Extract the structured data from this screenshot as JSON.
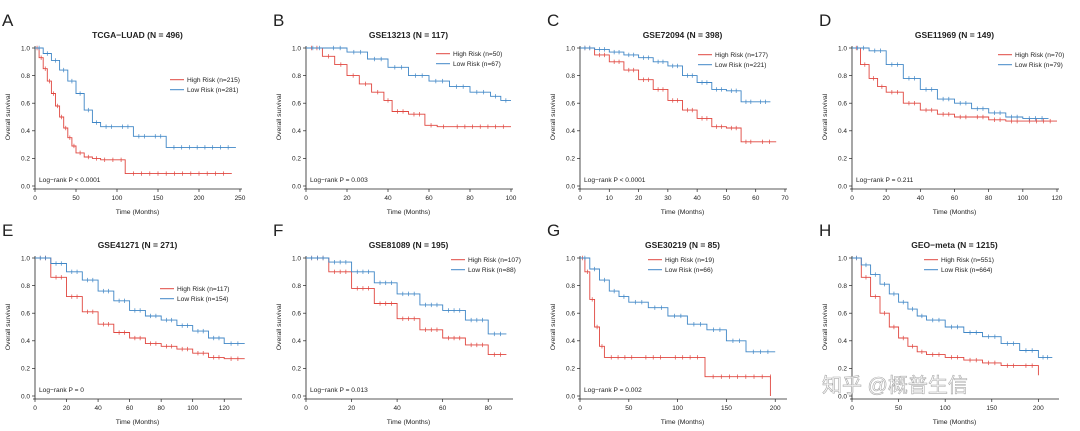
{
  "watermark": "知乎 @概普生信",
  "colors": {
    "high": "#e0463f",
    "low": "#3f86c6",
    "axis": "#222222"
  },
  "chart_data": [
    {
      "type": "line",
      "letter": "A",
      "title": "TCGA−LUAD (N = 496)",
      "xlabel": "Time (Months)",
      "ylabel": "Overall survival",
      "xlim": [
        0,
        250
      ],
      "xticks": [
        0,
        50,
        100,
        150,
        200,
        250
      ],
      "ylim": [
        0,
        1
      ],
      "yticks": [
        "0.0",
        "0.2",
        "0.4",
        "0.6",
        "0.8",
        "1.0"
      ],
      "legend": [
        "High Risk (n=215)",
        "Low Risk (n=281)"
      ],
      "pvalue": "Log−rank P < 0.0001",
      "series": [
        {
          "name": "High Risk (n=215)",
          "x": [
            0,
            5,
            10,
            15,
            20,
            25,
            30,
            35,
            40,
            45,
            50,
            60,
            70,
            80,
            90,
            100,
            110,
            240
          ],
          "y": [
            1.0,
            0.93,
            0.85,
            0.76,
            0.67,
            0.58,
            0.5,
            0.42,
            0.35,
            0.29,
            0.24,
            0.21,
            0.2,
            0.19,
            0.19,
            0.19,
            0.09,
            0.09
          ]
        },
        {
          "name": "Low Risk (n=281)",
          "x": [
            0,
            10,
            20,
            30,
            40,
            50,
            60,
            70,
            80,
            100,
            120,
            140,
            160,
            245
          ],
          "y": [
            1.0,
            0.96,
            0.91,
            0.84,
            0.76,
            0.67,
            0.55,
            0.46,
            0.43,
            0.43,
            0.36,
            0.36,
            0.28,
            0.28
          ]
        }
      ]
    },
    {
      "type": "line",
      "letter": "B",
      "title": "GSE13213 (N = 117)",
      "xlabel": "Time (Months)",
      "ylabel": "Overall survival",
      "xlim": [
        0,
        100
      ],
      "xticks": [
        0,
        20,
        40,
        60,
        80,
        100
      ],
      "ylim": [
        0,
        1
      ],
      "yticks": [
        "0.0",
        "0.2",
        "0.4",
        "0.6",
        "0.8",
        "1.0"
      ],
      "legend": [
        "High Risk (n=50)",
        "Low Risk (n=67)"
      ],
      "pvalue": "Log−rank P = 0.003",
      "series": [
        {
          "name": "High Risk (n=50)",
          "x": [
            0,
            8,
            14,
            20,
            26,
            32,
            38,
            42,
            50,
            58,
            64,
            70,
            100
          ],
          "y": [
            1.0,
            0.94,
            0.88,
            0.8,
            0.74,
            0.68,
            0.62,
            0.54,
            0.52,
            0.44,
            0.43,
            0.43,
            0.43
          ]
        },
        {
          "name": "Low Risk (n=67)",
          "x": [
            0,
            10,
            20,
            30,
            40,
            50,
            60,
            70,
            80,
            90,
            95,
            100
          ],
          "y": [
            1.0,
            1.0,
            0.97,
            0.92,
            0.86,
            0.8,
            0.76,
            0.72,
            0.68,
            0.65,
            0.62,
            0.62
          ]
        }
      ]
    },
    {
      "type": "line",
      "letter": "C",
      "title": "GSE72094 (N = 398)",
      "xlabel": "Time (Months)",
      "ylabel": "Overall survival",
      "xlim": [
        0,
        70
      ],
      "xticks": [
        0,
        10,
        20,
        30,
        40,
        50,
        60,
        70
      ],
      "ylim": [
        0,
        1
      ],
      "yticks": [
        "0.0",
        "0.2",
        "0.4",
        "0.6",
        "0.8",
        "1.0"
      ],
      "legend": [
        "High Risk (n=177)",
        "Low Risk (n=221)"
      ],
      "pvalue": "Log−rank P < 0.0001",
      "series": [
        {
          "name": "High Risk (n=177)",
          "x": [
            0,
            5,
            10,
            15,
            20,
            25,
            30,
            35,
            40,
            45,
            50,
            55,
            60,
            67
          ],
          "y": [
            1.0,
            0.95,
            0.9,
            0.84,
            0.77,
            0.7,
            0.62,
            0.55,
            0.49,
            0.43,
            0.42,
            0.32,
            0.32,
            0.32
          ]
        },
        {
          "name": "Low Risk (n=221)",
          "x": [
            0,
            5,
            10,
            15,
            20,
            25,
            30,
            35,
            40,
            45,
            50,
            55,
            60,
            65
          ],
          "y": [
            1.0,
            0.99,
            0.97,
            0.95,
            0.93,
            0.9,
            0.87,
            0.8,
            0.75,
            0.7,
            0.69,
            0.61,
            0.61,
            0.61
          ]
        }
      ]
    },
    {
      "type": "line",
      "letter": "D",
      "title": "GSE11969 (N = 149)",
      "xlabel": "Time (Months)",
      "ylabel": "Overall survival",
      "xlim": [
        0,
        120
      ],
      "xticks": [
        0,
        20,
        40,
        60,
        80,
        100,
        120
      ],
      "ylim": [
        0,
        1
      ],
      "yticks": [
        "0.0",
        "0.2",
        "0.4",
        "0.6",
        "0.8",
        "1.0"
      ],
      "legend": [
        "High Risk (n=70)",
        "Low Risk (n=79)"
      ],
      "pvalue": "Log−rank P = 0.211",
      "series": [
        {
          "name": "High Risk (n=70)",
          "x": [
            0,
            5,
            10,
            15,
            20,
            30,
            40,
            50,
            60,
            70,
            80,
            90,
            100,
            120
          ],
          "y": [
            1.0,
            0.88,
            0.78,
            0.72,
            0.68,
            0.6,
            0.55,
            0.52,
            0.5,
            0.5,
            0.48,
            0.47,
            0.47,
            0.47
          ]
        },
        {
          "name": "Low Risk (n=79)",
          "x": [
            0,
            10,
            20,
            30,
            40,
            50,
            60,
            70,
            80,
            90,
            100,
            115
          ],
          "y": [
            1.0,
            0.98,
            0.88,
            0.78,
            0.7,
            0.63,
            0.6,
            0.56,
            0.53,
            0.5,
            0.49,
            0.49
          ]
        }
      ]
    },
    {
      "type": "line",
      "letter": "E",
      "title": "GSE41271 (N = 271)",
      "xlabel": "Time (Months)",
      "ylabel": "Overall survival",
      "xlim": [
        0,
        130
      ],
      "xticks": [
        0,
        20,
        40,
        60,
        80,
        100,
        120
      ],
      "ylim": [
        0,
        1
      ],
      "yticks": [
        "0.0",
        "0.2",
        "0.4",
        "0.6",
        "0.8",
        "1.0"
      ],
      "legend": [
        "High Risk (n=117)",
        "Low Risk (n=154)"
      ],
      "pvalue": "Log−rank P = 0",
      "series": [
        {
          "name": "High Risk (n=117)",
          "x": [
            0,
            10,
            20,
            30,
            40,
            50,
            60,
            70,
            80,
            90,
            100,
            110,
            120,
            133
          ],
          "y": [
            1.0,
            0.86,
            0.72,
            0.61,
            0.52,
            0.46,
            0.42,
            0.38,
            0.36,
            0.34,
            0.31,
            0.28,
            0.27,
            0.27
          ]
        },
        {
          "name": "Low Risk (n=154)",
          "x": [
            0,
            10,
            20,
            30,
            40,
            50,
            60,
            70,
            80,
            90,
            100,
            110,
            120,
            133
          ],
          "y": [
            1.0,
            0.96,
            0.9,
            0.84,
            0.76,
            0.69,
            0.62,
            0.58,
            0.55,
            0.51,
            0.47,
            0.42,
            0.38,
            0.38
          ]
        }
      ]
    },
    {
      "type": "line",
      "letter": "F",
      "title": "GSE81089 (N = 195)",
      "xlabel": "Time (Months)",
      "ylabel": "Overall survival",
      "xlim": [
        0,
        90
      ],
      "xticks": [
        0,
        20,
        40,
        60,
        80
      ],
      "ylim": [
        0,
        1
      ],
      "yticks": [
        "0.0",
        "0.2",
        "0.4",
        "0.6",
        "0.8",
        "1.0"
      ],
      "legend": [
        "High Risk (n=107)",
        "Low Risk (n=88)"
      ],
      "pvalue": "Log−rank P = 0.013",
      "series": [
        {
          "name": "High Risk (n=107)",
          "x": [
            0,
            10,
            20,
            30,
            40,
            50,
            60,
            70,
            80,
            88
          ],
          "y": [
            1.0,
            0.9,
            0.78,
            0.67,
            0.56,
            0.48,
            0.42,
            0.37,
            0.3,
            0.3
          ]
        },
        {
          "name": "Low Risk (n=88)",
          "x": [
            0,
            10,
            20,
            30,
            40,
            50,
            60,
            70,
            80,
            88
          ],
          "y": [
            1.0,
            0.97,
            0.9,
            0.82,
            0.74,
            0.66,
            0.62,
            0.55,
            0.45,
            0.45
          ]
        }
      ]
    },
    {
      "type": "line",
      "letter": "G",
      "title": "GSE30219 (N = 85)",
      "xlabel": "Time (Months)",
      "ylabel": "Overall survival",
      "xlim": [
        0,
        210
      ],
      "xticks": [
        0,
        50,
        100,
        150,
        200
      ],
      "ylim": [
        0,
        1
      ],
      "yticks": [
        "0.0",
        "0.2",
        "0.4",
        "0.6",
        "0.8",
        "1.0"
      ],
      "legend": [
        "High Risk (n=19)",
        "Low Risk (n=66)"
      ],
      "pvalue": "Log−rank P = 0.002",
      "series": [
        {
          "name": "High Risk (n=19)",
          "x": [
            0,
            5,
            10,
            15,
            20,
            25,
            60,
            90,
            128,
            195,
            195
          ],
          "y": [
            1.0,
            0.9,
            0.7,
            0.5,
            0.36,
            0.28,
            0.28,
            0.28,
            0.14,
            0.14,
            0.0
          ]
        },
        {
          "name": "Low Risk (n=66)",
          "x": [
            0,
            10,
            20,
            30,
            40,
            50,
            70,
            90,
            110,
            130,
            150,
            170,
            200
          ],
          "y": [
            1.0,
            0.92,
            0.84,
            0.76,
            0.72,
            0.68,
            0.64,
            0.58,
            0.52,
            0.48,
            0.4,
            0.32,
            0.32
          ]
        }
      ]
    },
    {
      "type": "line",
      "letter": "H",
      "title": "GEO−meta (N = 1215)",
      "xlabel": "Time (Months)",
      "ylabel": "Overall survival",
      "xlim": [
        0,
        220
      ],
      "xticks": [
        0,
        50,
        100,
        150,
        200
      ],
      "ylim": [
        0,
        1
      ],
      "yticks": [
        "0.0",
        "0.2",
        "0.4",
        "0.6",
        "0.8",
        "1.0"
      ],
      "legend": [
        "High Risk (n=551)",
        "Low Risk (n=664)"
      ],
      "pvalue": "",
      "series": [
        {
          "name": "High Risk (n=551)",
          "x": [
            0,
            10,
            20,
            30,
            40,
            50,
            60,
            70,
            80,
            100,
            120,
            140,
            160,
            180,
            200
          ],
          "y": [
            1.0,
            0.86,
            0.72,
            0.6,
            0.5,
            0.42,
            0.36,
            0.32,
            0.3,
            0.28,
            0.26,
            0.24,
            0.22,
            0.22,
            0.15
          ]
        },
        {
          "name": "Low Risk (n=664)",
          "x": [
            0,
            10,
            20,
            30,
            40,
            50,
            60,
            70,
            80,
            100,
            120,
            140,
            160,
            180,
            200,
            215
          ],
          "y": [
            1.0,
            0.95,
            0.88,
            0.81,
            0.74,
            0.68,
            0.63,
            0.58,
            0.55,
            0.5,
            0.46,
            0.43,
            0.38,
            0.33,
            0.28,
            0.28
          ]
        }
      ]
    }
  ]
}
